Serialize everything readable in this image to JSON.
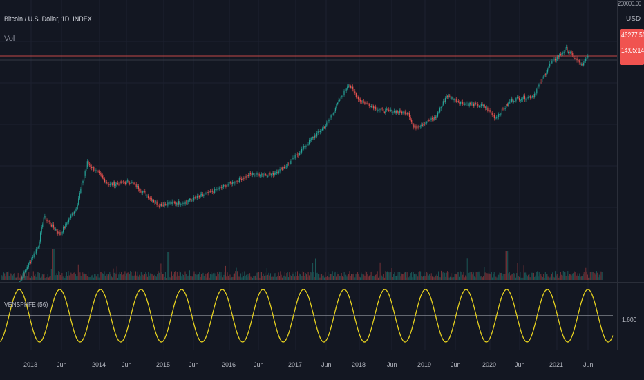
{
  "header": {
    "symbol_title": "Bitcoin / U.S. Dollar, 1D, INDEX",
    "volume_label": "Vol"
  },
  "price_axis": {
    "max_label": "200000.00",
    "currency": "USD",
    "last_price": "46277.51",
    "countdown": "14:05:14"
  },
  "oscillator": {
    "label": "VENSPHFE (56)",
    "level_label": "1.600",
    "line_color": "#e6d11f",
    "level_color": "#9598a1"
  },
  "time_axis": {
    "ticks": [
      {
        "label": "2013",
        "year": true
      },
      {
        "label": "Jun",
        "year": false
      },
      {
        "label": "2014",
        "year": true
      },
      {
        "label": "Jun",
        "year": false
      },
      {
        "label": "2015",
        "year": true
      },
      {
        "label": "Jun",
        "year": false
      },
      {
        "label": "2016",
        "year": true
      },
      {
        "label": "Jun",
        "year": false
      },
      {
        "label": "2017",
        "year": true
      },
      {
        "label": "Jun",
        "year": false
      },
      {
        "label": "2018",
        "year": true
      },
      {
        "label": "Jun",
        "year": false
      },
      {
        "label": "2019",
        "year": true
      },
      {
        "label": "Jun",
        "year": false
      },
      {
        "label": "2020",
        "year": true
      },
      {
        "label": "Jun",
        "year": false
      },
      {
        "label": "2021",
        "year": true
      },
      {
        "label": "Jun",
        "year": false
      }
    ]
  },
  "colors": {
    "background": "#131722",
    "up": "#26a69a",
    "down": "#ef5350",
    "price_line": "#f05350"
  },
  "chart_data": {
    "type": "line",
    "title": "Bitcoin / U.S. Dollar, 1D, INDEX",
    "scale": "log",
    "x": [
      "2012-11",
      "2013-03",
      "2013-04",
      "2013-07",
      "2013-10",
      "2013-12",
      "2014-04",
      "2014-08",
      "2015-01",
      "2015-06",
      "2015-11",
      "2016-06",
      "2016-10",
      "2017-01",
      "2017-05",
      "2017-08",
      "2017-12",
      "2018-02",
      "2018-06",
      "2018-11",
      "2018-12",
      "2019-04",
      "2019-06",
      "2019-09",
      "2020-01",
      "2020-03",
      "2020-06",
      "2020-10",
      "2021-01",
      "2021-04",
      "2021-07",
      "2021-08"
    ],
    "values": [
      11,
      50,
      140,
      75,
      200,
      1000,
      450,
      500,
      220,
      240,
      350,
      650,
      650,
      950,
      2200,
      4000,
      17000,
      9500,
      6500,
      6000,
      3500,
      5000,
      11000,
      8500,
      7500,
      5000,
      9500,
      11000,
      34000,
      60000,
      32000,
      46277
    ],
    "last_value": 46277.51
  }
}
